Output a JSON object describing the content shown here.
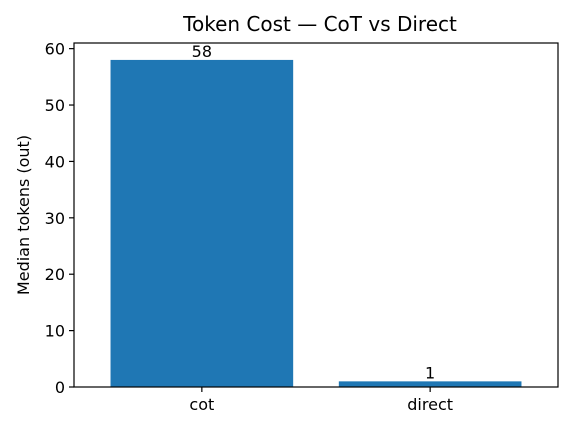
{
  "chart_data": {
    "type": "bar",
    "title": "Token Cost — CoT vs Direct",
    "xlabel": "",
    "ylabel": "Median tokens (out)",
    "categories": [
      "cot",
      "direct"
    ],
    "values": [
      58,
      1
    ],
    "data_labels": [
      "58",
      "1"
    ],
    "ylim": [
      0,
      61
    ],
    "yticks": [
      0,
      10,
      20,
      30,
      40,
      50,
      60
    ],
    "bar_color": "#1f77b4",
    "grid": false,
    "legend": "none"
  }
}
